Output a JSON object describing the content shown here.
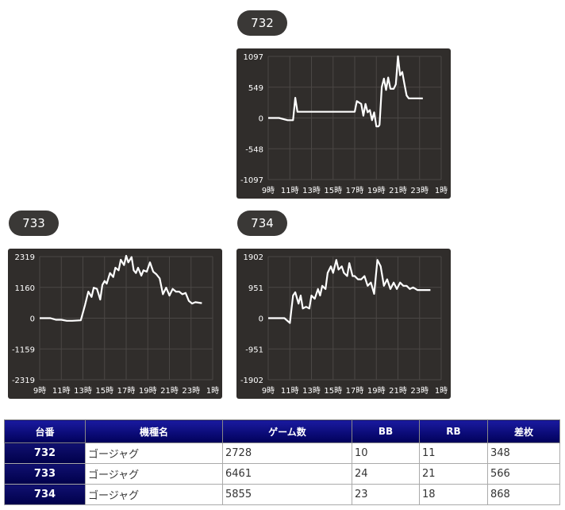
{
  "charts": [
    {
      "id": "732",
      "label": "732"
    },
    {
      "id": "733",
      "label": "733"
    },
    {
      "id": "734",
      "label": "734"
    }
  ],
  "chart_data": [
    {
      "type": "line",
      "title": "732",
      "ylim": [
        -1097,
        1097
      ],
      "yticks": [
        "1097",
        "549",
        "0",
        "-548",
        "-1097"
      ],
      "xticks": [
        "9時",
        "11時",
        "13時",
        "15時",
        "17時",
        "19時",
        "21時",
        "23時",
        "1時"
      ],
      "x": [
        9,
        10,
        10.8,
        11.3,
        11.5,
        11.7,
        12,
        13,
        14,
        15,
        16,
        17,
        17.2,
        17.6,
        17.8,
        18,
        18.2,
        18.4,
        18.6,
        18.8,
        19,
        19.2,
        19.3,
        19.5,
        19.7,
        19.9,
        20.1,
        20.3,
        20.6,
        20.8,
        21,
        21.2,
        21.4,
        21.6,
        21.8,
        22,
        22.4,
        22.8,
        23.3
      ],
      "y": [
        0,
        0,
        -40,
        -40,
        360,
        110,
        110,
        110,
        110,
        110,
        110,
        110,
        300,
        250,
        40,
        250,
        100,
        140,
        -40,
        100,
        -150,
        -150,
        -120,
        550,
        700,
        500,
        720,
        520,
        520,
        600,
        1100,
        760,
        820,
        600,
        400,
        350,
        350,
        350,
        348
      ],
      "line_color": "#ffffff",
      "grid": true
    },
    {
      "type": "line",
      "title": "733",
      "ylim": [
        -2319,
        2319
      ],
      "yticks": [
        "2319",
        "1160",
        "0",
        "-1159",
        "-2319"
      ],
      "xticks": [
        "9時",
        "11時",
        "13時",
        "15時",
        "17時",
        "19時",
        "21時",
        "23時",
        "1時"
      ],
      "x": [
        9,
        10,
        10.5,
        11,
        11.5,
        12,
        12.8,
        13.2,
        13.5,
        13.8,
        14,
        14.3,
        14.6,
        14.8,
        15,
        15.2,
        15.5,
        15.8,
        16,
        16.3,
        16.5,
        16.8,
        17,
        17.2,
        17.5,
        17.7,
        17.9,
        18.1,
        18.4,
        18.6,
        18.9,
        19.2,
        19.5,
        19.8,
        20.1,
        20.4,
        20.7,
        21,
        21.3,
        21.6,
        21.9,
        22.2,
        22.5,
        22.8,
        23.1,
        23.4,
        24
      ],
      "y": [
        0,
        0,
        -60,
        -60,
        -100,
        -100,
        -80,
        500,
        1000,
        800,
        1150,
        1100,
        700,
        1250,
        1400,
        1300,
        1700,
        1550,
        1900,
        1800,
        2200,
        2000,
        2350,
        2100,
        2300,
        1800,
        1700,
        1900,
        1600,
        1800,
        1750,
        2100,
        1750,
        1650,
        1500,
        900,
        1150,
        850,
        1100,
        1000,
        1000,
        900,
        950,
        650,
        550,
        600,
        566
      ],
      "line_color": "#ffffff",
      "grid": true
    },
    {
      "type": "line",
      "title": "734",
      "ylim": [
        -1902,
        1902
      ],
      "yticks": [
        "1902",
        "951",
        "0",
        "-951",
        "-1902"
      ],
      "xticks": [
        "9時",
        "11時",
        "13時",
        "15時",
        "17時",
        "19時",
        "21時",
        "23時",
        "1時"
      ],
      "x": [
        9,
        10,
        10.5,
        11,
        11.3,
        11.5,
        11.8,
        12,
        12.2,
        12.5,
        12.8,
        13,
        13.3,
        13.6,
        13.8,
        14,
        14.3,
        14.5,
        14.8,
        15,
        15.3,
        15.5,
        15.8,
        16,
        16.3,
        16.5,
        16.8,
        17,
        17.3,
        17.6,
        17.9,
        18.2,
        18.5,
        18.8,
        19.1,
        19.4,
        19.7,
        20,
        20.3,
        20.6,
        20.9,
        21.2,
        21.5,
        21.8,
        22.1,
        22.4,
        22.8,
        23.2,
        24
      ],
      "y": [
        0,
        0,
        0,
        -150,
        700,
        800,
        450,
        700,
        300,
        350,
        300,
        700,
        600,
        900,
        700,
        1000,
        900,
        1400,
        1600,
        1400,
        1800,
        1500,
        1600,
        1400,
        1300,
        1700,
        1300,
        1300,
        1200,
        1200,
        1300,
        1000,
        1100,
        750,
        1800,
        1600,
        1000,
        1200,
        900,
        1100,
        900,
        1100,
        1000,
        1000,
        900,
        950,
        870,
        870,
        868
      ],
      "line_color": "#ffffff",
      "grid": true
    }
  ],
  "table": {
    "headers": [
      "台番",
      "機種名",
      "ゲーム数",
      "BB",
      "RB",
      "差枚"
    ],
    "rows": [
      [
        "732",
        "ゴージャグ",
        "2728",
        "10",
        "11",
        "348"
      ],
      [
        "733",
        "ゴージャグ",
        "6461",
        "24",
        "21",
        "566"
      ],
      [
        "734",
        "ゴージャグ",
        "5855",
        "23",
        "18",
        "868"
      ]
    ]
  }
}
